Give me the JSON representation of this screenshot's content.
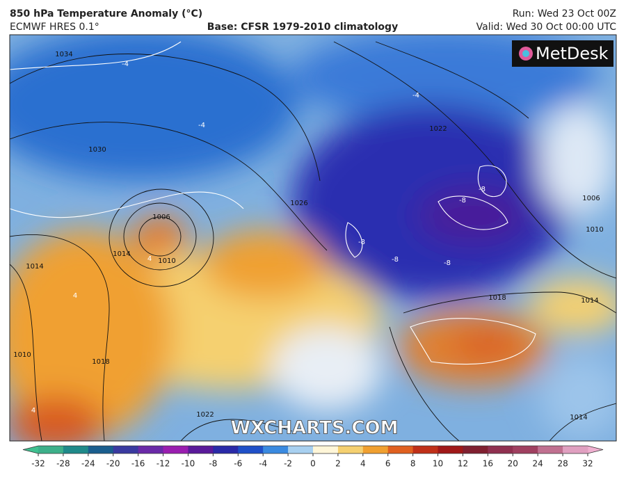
{
  "header": {
    "title": "850 hPa Temperature Anomaly (°C)",
    "model": "ECMWF HRES 0.1°",
    "base": "Base: CFSR 1979-2010 climatology",
    "run": "Run: Wed 23 Oct 00Z",
    "valid": "Valid: Wed 30 Oct 00:00 UTC"
  },
  "logo": "MetDesk",
  "watermark": "WXCHARTS.COM",
  "map": {
    "isobar_labels": [
      1034,
      1030,
      1006,
      1010,
      1014,
      1014,
      1010,
      1018,
      1026,
      1022,
      1006,
      1010,
      1014,
      1018,
      1022,
      1014
    ],
    "anomaly_labels": [
      -4,
      -4,
      -4,
      -8,
      -8,
      -8,
      -8,
      -8,
      4,
      4,
      4
    ]
  },
  "colorbar": {
    "ticks": [
      -32,
      -28,
      -24,
      -20,
      -16,
      -12,
      -10,
      -8,
      -6,
      -4,
      -2,
      0,
      2,
      4,
      6,
      8,
      10,
      12,
      16,
      20,
      24,
      28,
      32
    ],
    "colors": [
      "#3db08a",
      "#1f8a8a",
      "#1a5e8e",
      "#3a3aa0",
      "#6a2aa8",
      "#9a1eb0",
      "#5a1a9a",
      "#2a2aa8",
      "#1f50c8",
      "#3a8ae0",
      "#a8d0f0",
      "#fff6d8",
      "#f5d070",
      "#f0a030",
      "#e06020",
      "#c03018",
      "#a01818",
      "#802030",
      "#903050",
      "#a04060",
      "#c07090",
      "#e0a0c0"
    ],
    "under_color": "#40c090",
    "over_color": "#f0b0d0"
  }
}
